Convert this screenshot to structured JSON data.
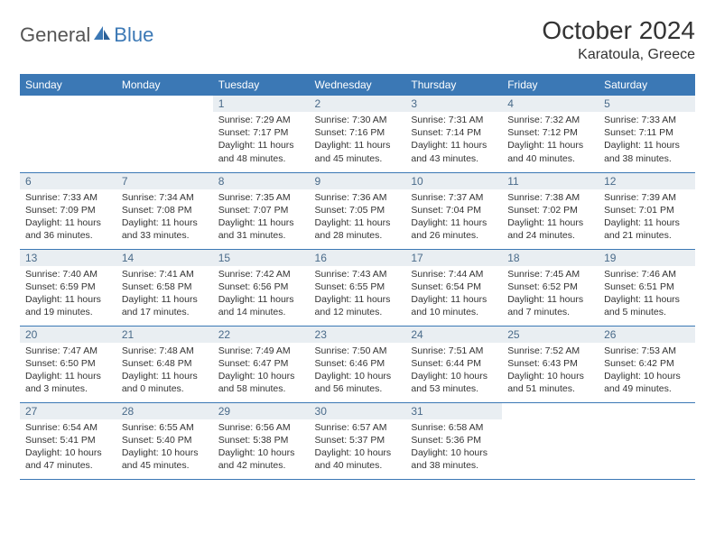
{
  "brand": {
    "name_part1": "General",
    "name_part2": "Blue",
    "text_color": "#555555",
    "accent_color": "#3b78b5"
  },
  "title": "October 2024",
  "location": "Karatoula, Greece",
  "header_bg": "#3b78b5",
  "header_fg": "#ffffff",
  "daynum_bg": "#e9eef2",
  "daynum_fg": "#4a6b8a",
  "row_border": "#3b78b5",
  "day_headers": [
    "Sunday",
    "Monday",
    "Tuesday",
    "Wednesday",
    "Thursday",
    "Friday",
    "Saturday"
  ],
  "weeks": [
    [
      null,
      null,
      {
        "n": "1",
        "sr": "Sunrise: 7:29 AM",
        "ss": "Sunset: 7:17 PM",
        "dl": "Daylight: 11 hours and 48 minutes."
      },
      {
        "n": "2",
        "sr": "Sunrise: 7:30 AM",
        "ss": "Sunset: 7:16 PM",
        "dl": "Daylight: 11 hours and 45 minutes."
      },
      {
        "n": "3",
        "sr": "Sunrise: 7:31 AM",
        "ss": "Sunset: 7:14 PM",
        "dl": "Daylight: 11 hours and 43 minutes."
      },
      {
        "n": "4",
        "sr": "Sunrise: 7:32 AM",
        "ss": "Sunset: 7:12 PM",
        "dl": "Daylight: 11 hours and 40 minutes."
      },
      {
        "n": "5",
        "sr": "Sunrise: 7:33 AM",
        "ss": "Sunset: 7:11 PM",
        "dl": "Daylight: 11 hours and 38 minutes."
      }
    ],
    [
      {
        "n": "6",
        "sr": "Sunrise: 7:33 AM",
        "ss": "Sunset: 7:09 PM",
        "dl": "Daylight: 11 hours and 36 minutes."
      },
      {
        "n": "7",
        "sr": "Sunrise: 7:34 AM",
        "ss": "Sunset: 7:08 PM",
        "dl": "Daylight: 11 hours and 33 minutes."
      },
      {
        "n": "8",
        "sr": "Sunrise: 7:35 AM",
        "ss": "Sunset: 7:07 PM",
        "dl": "Daylight: 11 hours and 31 minutes."
      },
      {
        "n": "9",
        "sr": "Sunrise: 7:36 AM",
        "ss": "Sunset: 7:05 PM",
        "dl": "Daylight: 11 hours and 28 minutes."
      },
      {
        "n": "10",
        "sr": "Sunrise: 7:37 AM",
        "ss": "Sunset: 7:04 PM",
        "dl": "Daylight: 11 hours and 26 minutes."
      },
      {
        "n": "11",
        "sr": "Sunrise: 7:38 AM",
        "ss": "Sunset: 7:02 PM",
        "dl": "Daylight: 11 hours and 24 minutes."
      },
      {
        "n": "12",
        "sr": "Sunrise: 7:39 AM",
        "ss": "Sunset: 7:01 PM",
        "dl": "Daylight: 11 hours and 21 minutes."
      }
    ],
    [
      {
        "n": "13",
        "sr": "Sunrise: 7:40 AM",
        "ss": "Sunset: 6:59 PM",
        "dl": "Daylight: 11 hours and 19 minutes."
      },
      {
        "n": "14",
        "sr": "Sunrise: 7:41 AM",
        "ss": "Sunset: 6:58 PM",
        "dl": "Daylight: 11 hours and 17 minutes."
      },
      {
        "n": "15",
        "sr": "Sunrise: 7:42 AM",
        "ss": "Sunset: 6:56 PM",
        "dl": "Daylight: 11 hours and 14 minutes."
      },
      {
        "n": "16",
        "sr": "Sunrise: 7:43 AM",
        "ss": "Sunset: 6:55 PM",
        "dl": "Daylight: 11 hours and 12 minutes."
      },
      {
        "n": "17",
        "sr": "Sunrise: 7:44 AM",
        "ss": "Sunset: 6:54 PM",
        "dl": "Daylight: 11 hours and 10 minutes."
      },
      {
        "n": "18",
        "sr": "Sunrise: 7:45 AM",
        "ss": "Sunset: 6:52 PM",
        "dl": "Daylight: 11 hours and 7 minutes."
      },
      {
        "n": "19",
        "sr": "Sunrise: 7:46 AM",
        "ss": "Sunset: 6:51 PM",
        "dl": "Daylight: 11 hours and 5 minutes."
      }
    ],
    [
      {
        "n": "20",
        "sr": "Sunrise: 7:47 AM",
        "ss": "Sunset: 6:50 PM",
        "dl": "Daylight: 11 hours and 3 minutes."
      },
      {
        "n": "21",
        "sr": "Sunrise: 7:48 AM",
        "ss": "Sunset: 6:48 PM",
        "dl": "Daylight: 11 hours and 0 minutes."
      },
      {
        "n": "22",
        "sr": "Sunrise: 7:49 AM",
        "ss": "Sunset: 6:47 PM",
        "dl": "Daylight: 10 hours and 58 minutes."
      },
      {
        "n": "23",
        "sr": "Sunrise: 7:50 AM",
        "ss": "Sunset: 6:46 PM",
        "dl": "Daylight: 10 hours and 56 minutes."
      },
      {
        "n": "24",
        "sr": "Sunrise: 7:51 AM",
        "ss": "Sunset: 6:44 PM",
        "dl": "Daylight: 10 hours and 53 minutes."
      },
      {
        "n": "25",
        "sr": "Sunrise: 7:52 AM",
        "ss": "Sunset: 6:43 PM",
        "dl": "Daylight: 10 hours and 51 minutes."
      },
      {
        "n": "26",
        "sr": "Sunrise: 7:53 AM",
        "ss": "Sunset: 6:42 PM",
        "dl": "Daylight: 10 hours and 49 minutes."
      }
    ],
    [
      {
        "n": "27",
        "sr": "Sunrise: 6:54 AM",
        "ss": "Sunset: 5:41 PM",
        "dl": "Daylight: 10 hours and 47 minutes."
      },
      {
        "n": "28",
        "sr": "Sunrise: 6:55 AM",
        "ss": "Sunset: 5:40 PM",
        "dl": "Daylight: 10 hours and 45 minutes."
      },
      {
        "n": "29",
        "sr": "Sunrise: 6:56 AM",
        "ss": "Sunset: 5:38 PM",
        "dl": "Daylight: 10 hours and 42 minutes."
      },
      {
        "n": "30",
        "sr": "Sunrise: 6:57 AM",
        "ss": "Sunset: 5:37 PM",
        "dl": "Daylight: 10 hours and 40 minutes."
      },
      {
        "n": "31",
        "sr": "Sunrise: 6:58 AM",
        "ss": "Sunset: 5:36 PM",
        "dl": "Daylight: 10 hours and 38 minutes."
      },
      null,
      null
    ]
  ]
}
